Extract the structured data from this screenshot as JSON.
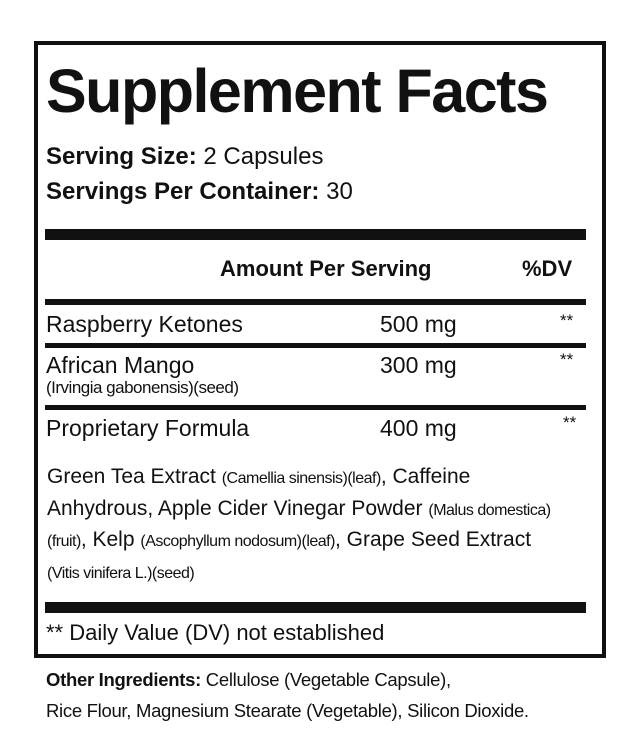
{
  "label": {
    "title": "Supplement Facts",
    "serving_size_label": "Serving Size:",
    "serving_size_value": "2 Capsules",
    "servings_per_container_label": "Servings Per Container:",
    "servings_per_container_value": "30",
    "header_amount": "Amount Per Serving",
    "header_dv": "%DV",
    "rows": [
      {
        "name": "Raspberry Ketones",
        "amount": "500 mg",
        "dv": "**"
      },
      {
        "name": "African Mango",
        "subname": "(Irvingia gabonensis)(seed)",
        "amount": "300 mg",
        "dv": "**"
      },
      {
        "name": "Proprietary Formula",
        "amount": "400 mg",
        "dv": "**"
      }
    ],
    "blend": [
      {
        "main": "Green Tea Extract ",
        "detail": "(Camellia sinensis)(leaf)",
        "sep": ", "
      },
      {
        "main": "Caffeine Anhydrous",
        "detail": "",
        "sep": ", "
      },
      {
        "main": "Apple Cider Vinegar Powder ",
        "detail": "(Malus domestica)(fruit)",
        "sep": ", "
      },
      {
        "main": "Kelp ",
        "detail": "(Ascophyllum nodosum)(leaf)",
        "sep": ", "
      },
      {
        "main": "Grape Seed Extract ",
        "detail": "(Vitis vinifera L.)(seed)",
        "sep": ""
      }
    ],
    "footnote": "** Daily Value (DV) not established"
  },
  "other_ingredients": {
    "label": "Other Ingredients:",
    "line1": " Cellulose (Vegetable Capsule),",
    "line2": "Rice Flour, Magnesium Stearate (Vegetable), Silicon Dioxide."
  }
}
